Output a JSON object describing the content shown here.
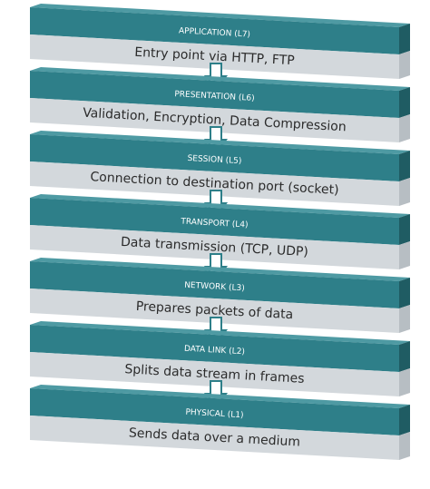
{
  "colors": {
    "band_front": "#2e7f89",
    "band_right": "#1f5c63",
    "band_top": "#4e9aa3",
    "desc_front": "#d3d8dc",
    "desc_right": "#b7bec3",
    "arrow_fill": "#ffffff",
    "arrow_stroke": "#2e7f89"
  },
  "layers": [
    {
      "title": "APPLICATION (L7)",
      "description": "Entry point via HTTP, FTP"
    },
    {
      "title": "PRESENTATION (L6)",
      "description": "Validation, Encryption, Data Compression"
    },
    {
      "title": "SESSION (L5)",
      "description": "Connection to destination port (socket)"
    },
    {
      "title": "TRANSPORT (L4)",
      "description": "Data transmission (TCP, UDP)"
    },
    {
      "title": "NETWORK (L3)",
      "description": "Prepares packets of data"
    },
    {
      "title": "DATA LINK (L2)",
      "description": "Splits data stream in frames"
    },
    {
      "title": "PHYSICAL (L1)",
      "description": "Sends data over a medium"
    }
  ]
}
